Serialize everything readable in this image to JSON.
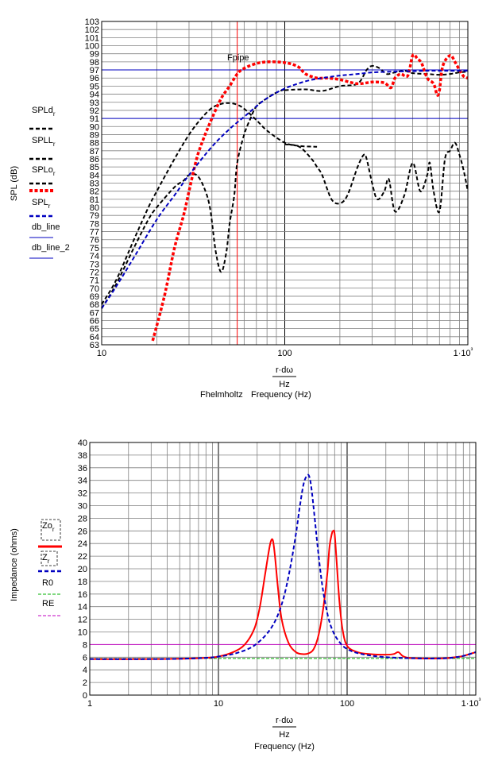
{
  "chart_data": [
    {
      "type": "line",
      "title": "",
      "ylabel": "SPL (dB)",
      "xlabel_top": "r·dω",
      "xlabel_unit": "Hz",
      "xlabel_extra": "Fhelmholtz",
      "xlabel": "Frequency (Hz)",
      "xscale": "log",
      "xlim": [
        10,
        1000
      ],
      "ylim": [
        63,
        103
      ],
      "x_tick_labels": [
        "10",
        "100",
        "1·10³"
      ],
      "y_ticks_step": 1,
      "grid": true,
      "legend_placement": "left",
      "annotation": "Fpipe",
      "vlines": [
        {
          "name": "Fpipe",
          "x": 55,
          "color": "#ff0000"
        }
      ],
      "hlines": [
        {
          "name": "db_line",
          "y": 97,
          "color": "#0000c0"
        },
        {
          "name": "db_line_2",
          "y": 91,
          "color": "#0000c0"
        }
      ],
      "legend": [
        {
          "label": "SPLd",
          "sub": "r",
          "subsub": "",
          "color": "#000000",
          "style": "dash",
          "width": 2.5
        },
        {
          "label": "SPLL",
          "sub": "r",
          "subsub": "",
          "color": "#000000",
          "style": "dash",
          "width": 2.5
        },
        {
          "label": "SPLo",
          "sub": "r",
          "subsub": "",
          "color": "#000000",
          "style": "dash",
          "width": 2.5
        },
        {
          "label": "SPL",
          "sub": "r",
          "subsub": "",
          "color": "#ff0000",
          "style": "thickdot",
          "width": 4
        },
        {
          "label": "",
          "sub": "",
          "subsub": "",
          "color": "#0000c0",
          "style": "dash",
          "width": 2.5
        },
        {
          "label": "db_line",
          "sub": "",
          "subsub": "",
          "color": "#0000c0",
          "style": "solid",
          "width": 1
        },
        {
          "label": "db_line_2",
          "sub": "",
          "subsub": "",
          "color": "#0000c0",
          "style": "solid",
          "width": 1
        }
      ],
      "series": [
        {
          "color": "#000000",
          "style": "dash",
          "width": 2,
          "x": [
            10,
            12,
            15,
            18,
            20,
            25,
            30,
            35,
            40,
            45,
            50,
            55,
            60,
            70,
            80,
            100,
            120,
            150
          ],
          "y": [
            68,
            71,
            76,
            80,
            82,
            86,
            89,
            91,
            92.3,
            92.8,
            92.9,
            92.7,
            92.2,
            90.8,
            89.5,
            88,
            87.6,
            87.5
          ]
        },
        {
          "color": "#000000",
          "style": "dash",
          "width": 2,
          "x": [
            10,
            12,
            15,
            18,
            20,
            25,
            28,
            30,
            33,
            36,
            39,
            42,
            45,
            48,
            50,
            53,
            55,
            60,
            65,
            70,
            80,
            90,
            100
          ],
          "y": [
            67.5,
            70.5,
            75,
            78.5,
            80,
            82.5,
            83.3,
            84,
            84,
            82.6,
            80,
            74.5,
            72,
            74.5,
            78,
            81.5,
            85.5,
            89,
            91,
            92.5,
            93.5,
            94.2,
            94.6
          ]
        },
        {
          "color": "#000000",
          "style": "dash",
          "width": 2,
          "x": [
            100,
            120,
            140,
            150,
            160,
            180,
            200,
            220,
            250,
            270,
            280,
            300,
            320,
            350,
            370,
            400,
            450,
            500,
            550,
            600,
            620,
            650,
            700,
            750,
            800,
            850,
            900,
            950,
            1000
          ],
          "y": [
            87.8,
            87.5,
            86,
            85,
            84,
            81,
            80.5,
            81.5,
            85,
            86.5,
            86,
            83,
            81,
            82,
            83.5,
            79.5,
            81.5,
            85.5,
            82,
            84,
            85.5,
            82,
            79.5,
            86,
            87,
            88,
            86.5,
            84.5,
            82
          ]
        },
        {
          "color": "#000000",
          "style": "dash",
          "width": 2,
          "x": [
            100,
            130,
            160,
            200,
            250,
            280,
            300,
            330,
            360,
            400,
            450,
            500,
            600,
            700,
            800,
            900,
            1000
          ],
          "y": [
            94.5,
            94.6,
            94.4,
            95,
            95.3,
            97,
            97.5,
            97.2,
            96.5,
            96.7,
            96.9,
            96.6,
            96.5,
            96.4,
            96.5,
            96.7,
            96.8
          ]
        },
        {
          "color": "#ff0000",
          "style": "thickdot",
          "width": 3.5,
          "x": [
            19,
            22,
            25,
            28,
            30,
            33,
            36,
            40,
            45,
            50,
            55,
            60,
            70,
            80,
            90,
            100,
            110,
            120,
            130,
            150,
            170,
            200,
            250,
            300,
            350,
            380,
            400,
            430,
            470,
            500,
            530,
            560,
            600,
            650,
            680,
            700,
            730,
            800,
            850,
            900,
            950,
            1000
          ],
          "y": [
            63.5,
            69,
            75,
            79,
            82,
            86,
            88.5,
            91,
            93.5,
            95,
            96.5,
            97.2,
            97.8,
            98,
            98,
            97.9,
            97.7,
            97.3,
            96.5,
            96,
            96,
            95.8,
            95.3,
            95.5,
            95.4,
            94.8,
            96,
            96.5,
            96.3,
            98.8,
            98.4,
            97.8,
            96,
            95.3,
            93.9,
            94.5,
            97.5,
            98.8,
            98,
            97,
            96.2,
            96
          ]
        },
        {
          "color": "#0000c0",
          "style": "dash",
          "width": 2,
          "x": [
            10,
            12,
            15,
            20,
            25,
            30,
            40,
            50,
            60,
            70,
            80,
            100,
            130,
            160,
            200,
            250,
            300,
            400,
            500,
            600,
            700,
            800,
            1000
          ],
          "y": [
            67.5,
            70.2,
            73.8,
            78.5,
            81.5,
            84,
            87.5,
            89.7,
            91.2,
            92.5,
            93.5,
            94.7,
            95.6,
            96,
            96.3,
            96.5,
            96.7,
            96.8,
            96.85,
            96.9,
            96.9,
            96.9,
            96.9
          ]
        }
      ],
      "annotations": [
        "Fpipe"
      ]
    },
    {
      "type": "line",
      "title": "",
      "ylabel": "Impedance (ohms)",
      "xlabel_top": "r·dω",
      "xlabel_unit": "Hz",
      "xlabel": "Frequency (Hz)",
      "xscale": "log",
      "xlim": [
        1,
        1000
      ],
      "ylim": [
        0,
        40
      ],
      "x_tick_labels": [
        "1",
        "10",
        "100",
        "1·10³"
      ],
      "y_tick_labels": [
        "0",
        "2",
        "4",
        "6",
        "8",
        "10",
        "12",
        "14",
        "16",
        "18",
        "20",
        "22",
        "24",
        "26",
        "28",
        "30",
        "32",
        "34",
        "36",
        "38",
        "40"
      ],
      "grid": true,
      "legend_placement": "left",
      "hlines": [
        {
          "name": "R0",
          "y": 5.8,
          "color": "#00b000",
          "style": "dash"
        },
        {
          "name": "RE",
          "y": 8.0,
          "color": "#c000c0",
          "style": "solid"
        }
      ],
      "legend": [
        {
          "label": "Zo",
          "sub": "r",
          "color": "#ff0000",
          "style": "solid",
          "width": 3
        },
        {
          "label": "Z",
          "sub": "r",
          "color": "#0000c0",
          "style": "dash",
          "width": 2.5
        },
        {
          "label": "R0",
          "sub": "",
          "color": "#00b000",
          "style": "dash",
          "width": 1
        },
        {
          "label": "RE",
          "sub": "",
          "color": "#c000c0",
          "style": "dash",
          "width": 1
        }
      ],
      "series": [
        {
          "color": "#ff0000",
          "style": "solid",
          "width": 2,
          "x": [
            1,
            3,
            5,
            8,
            10,
            13,
            16,
            19,
            21,
            23,
            24.5,
            25.5,
            26.5,
            27.5,
            29,
            31,
            35,
            40,
            45,
            50,
            55,
            60,
            65,
            70,
            73,
            76,
            78,
            80,
            83,
            87,
            92,
            100,
            120,
            150,
            200,
            230,
            250,
            270,
            300,
            400,
            500,
            600,
            700,
            800,
            1000
          ],
          "y": [
            5.7,
            5.7,
            5.75,
            5.9,
            6.1,
            6.8,
            8,
            10.5,
            14,
            19,
            22.5,
            24.3,
            24.5,
            22,
            17,
            12,
            8.3,
            6.8,
            6.5,
            6.6,
            7.3,
            9.5,
            13.5,
            19,
            23.5,
            25.5,
            26,
            25.5,
            21,
            15,
            10.5,
            7.8,
            6.8,
            6.5,
            6.4,
            6.5,
            6.8,
            6.2,
            5.9,
            5.8,
            5.8,
            5.85,
            6,
            6.2,
            6.8
          ]
        },
        {
          "color": "#0000c0",
          "style": "dash",
          "width": 2,
          "x": [
            1,
            3,
            5,
            8,
            10,
            13,
            17,
            20,
            24,
            28,
            32,
            36,
            40,
            43,
            46,
            49,
            51,
            53,
            56,
            59,
            63,
            67,
            72,
            78,
            85,
            95,
            110,
            130,
            160,
            200,
            250,
            300,
            400,
            500,
            600,
            700,
            800,
            1000
          ],
          "y": [
            5.7,
            5.7,
            5.75,
            5.9,
            6.1,
            6.5,
            7.3,
            8.2,
            9.8,
            12,
            15.3,
            20,
            25.5,
            30,
            33.5,
            34.8,
            34.5,
            32.5,
            28,
            23.5,
            18.5,
            15,
            12,
            10,
            8.7,
            7.6,
            6.9,
            6.5,
            6.2,
            6,
            5.9,
            5.85,
            5.8,
            5.8,
            5.85,
            6,
            6.2,
            6.8
          ]
        }
      ]
    }
  ]
}
